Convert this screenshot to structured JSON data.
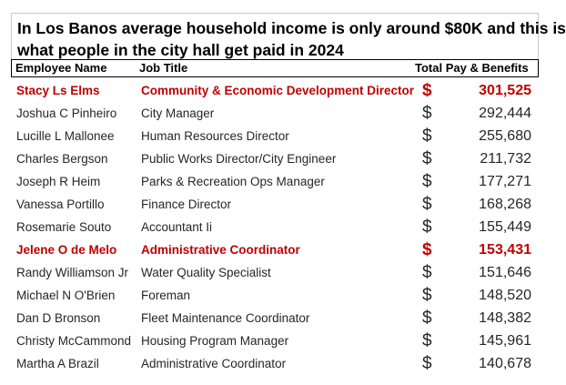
{
  "title": {
    "line1": "In Los Banos average household income is only around $80K and this is",
    "line2": "what people in the city hall get paid in 2024"
  },
  "columns": {
    "name": "Employee Name",
    "job": "Job Title",
    "pay": "Total Pay & Benefits"
  },
  "currency_symbol": "$",
  "highlight_color": "#c00000",
  "rows": [
    {
      "name": "Stacy Ls Elms",
      "job": "Community & Economic Development Director",
      "pay": "301,525",
      "highlight": true
    },
    {
      "name": "Joshua C Pinheiro",
      "job": "City Manager",
      "pay": "292,444",
      "highlight": false
    },
    {
      "name": "Lucille L Mallonee",
      "job": "Human Resources Director",
      "pay": "255,680",
      "highlight": false
    },
    {
      "name": "Charles Bergson",
      "job": "Public Works Director/City Engineer",
      "pay": "211,732",
      "highlight": false
    },
    {
      "name": "Joseph R Heim",
      "job": "Parks & Recreation Ops Manager",
      "pay": "177,271",
      "highlight": false
    },
    {
      "name": "Vanessa Portillo",
      "job": "Finance Director",
      "pay": "168,268",
      "highlight": false
    },
    {
      "name": "Rosemarie Souto",
      "job": "Accountant Ii",
      "pay": "155,449",
      "highlight": false
    },
    {
      "name": "Jelene O de Melo",
      "job": "Administrative Coordinator",
      "pay": "153,431",
      "highlight": true
    },
    {
      "name": "Randy Williamson Jr",
      "job": "Water Quality Specialist",
      "pay": "151,646",
      "highlight": false
    },
    {
      "name": "Michael N O'Brien",
      "job": "Foreman",
      "pay": "148,520",
      "highlight": false
    },
    {
      "name": "Dan D Bronson",
      "job": "Fleet Maintenance Coordinator",
      "pay": "148,382",
      "highlight": false
    },
    {
      "name": "Christy McCammond",
      "job": "Housing Program Manager",
      "pay": "145,961",
      "highlight": false
    },
    {
      "name": "Martha A Brazil",
      "job": "Administrative Coordinator",
      "pay": "140,678",
      "highlight": false
    }
  ]
}
